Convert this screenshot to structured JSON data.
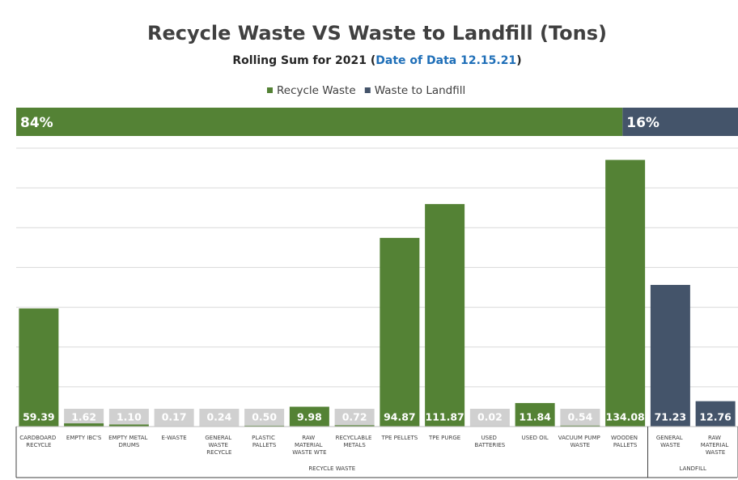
{
  "chart_data": {
    "type": "bar",
    "title": "Recycle Waste VS Waste to Landfill (Tons)",
    "subtitle_parts": [
      "Rolling Sum for 2021 (",
      "Date of Data 12.15.21",
      ")"
    ],
    "categories": [
      "CARDBOARD RECYCLE",
      "EMPTY IBC'S",
      "EMPTY METAL DRUMS",
      "E-WASTE",
      "GENERAL WASTE RECYCLE",
      "PLASTIC PALLETS",
      "RAW MATERIAL WASTE WTE",
      "RECYCLABLE METALS",
      "TPE PELLETS",
      "TPE PURGE",
      "USED BATTERIES",
      "USED OIL",
      "VACUUM PUMP WASTE",
      "WOODEN PALLETS",
      "GENERAL WASTE",
      "RAW MATERIAL WASTE"
    ],
    "group_labels": [
      "RECYCLE WASTE",
      "LANDFILL"
    ],
    "series": [
      {
        "name": "Recycle Waste",
        "color": "#548235",
        "values": [
          59.39,
          1.62,
          1.1,
          0.17,
          0.24,
          0.5,
          9.98,
          0.72,
          94.87,
          111.87,
          0.02,
          11.84,
          0.54,
          134.08,
          null,
          null
        ],
        "value_labels": [
          "59.39",
          "1.62",
          "1.10",
          "0.17",
          "0.24",
          "0.50",
          "9.98",
          "0.72",
          "94.87",
          "111.87",
          "0.02",
          "11.84",
          "0.54",
          "134.08",
          null,
          null
        ]
      },
      {
        "name": "Waste to Landfill",
        "color": "#44546a",
        "values": [
          null,
          null,
          null,
          null,
          null,
          null,
          null,
          null,
          null,
          null,
          null,
          null,
          null,
          null,
          71.23,
          12.76
        ],
        "value_labels": [
          null,
          null,
          null,
          null,
          null,
          null,
          null,
          null,
          null,
          null,
          null,
          null,
          null,
          null,
          "71.23",
          "12.76"
        ]
      }
    ],
    "share": {
      "values": [
        84,
        16
      ],
      "value_labels": [
        "84%",
        "16%"
      ]
    },
    "ylim": [
      0,
      140
    ],
    "yticks": [
      0,
      20,
      40,
      60,
      80,
      100,
      120,
      140
    ],
    "grid": true
  }
}
